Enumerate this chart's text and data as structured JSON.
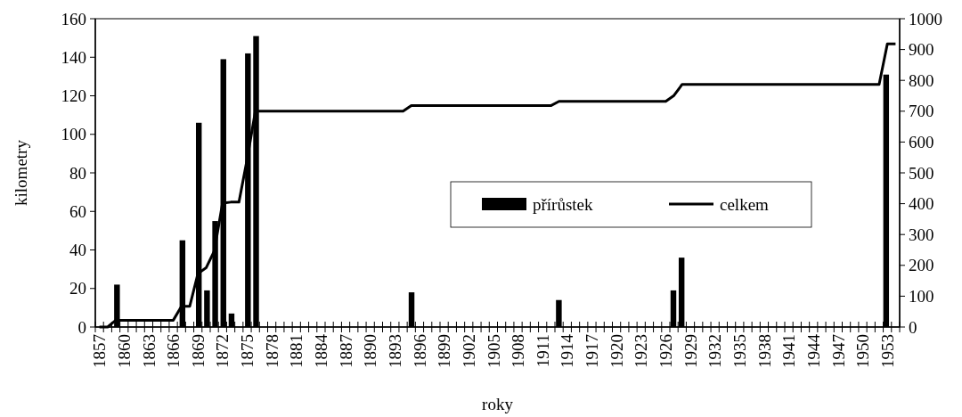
{
  "chart_data": {
    "type": "bar",
    "xlabel": "roky",
    "ylabel": "kilometry",
    "categories": [
      "1857",
      null,
      null,
      "1860",
      null,
      null,
      "1863",
      null,
      null,
      "1866",
      null,
      null,
      "1869",
      null,
      null,
      "1872",
      null,
      null,
      "1875",
      null,
      null,
      "1878",
      null,
      null,
      "1881",
      null,
      null,
      "1884",
      null,
      null,
      "1887",
      null,
      null,
      "1890",
      null,
      null,
      "1893",
      null,
      null,
      "1896",
      null,
      null,
      "1899",
      null,
      null,
      "1902",
      null,
      null,
      "1905",
      null,
      null,
      "1908",
      null,
      null,
      "1911",
      null,
      null,
      "1914",
      null,
      null,
      "1917",
      null,
      null,
      "1920",
      null,
      null,
      "1923",
      null,
      null,
      "1926",
      null,
      null,
      "1929",
      null,
      null,
      "1932",
      null,
      null,
      "1935",
      null,
      null,
      "1938",
      null,
      null,
      "1941",
      null,
      null,
      "1944",
      null,
      null,
      "1947",
      null,
      null,
      "1950",
      null,
      null,
      "1953",
      null
    ],
    "series": [
      {
        "name": "přírůstek",
        "color": "#000000",
        "values": [
          0,
          0,
          22,
          0,
          0,
          0,
          0,
          0,
          0,
          0,
          45,
          0,
          106,
          19,
          55,
          139,
          7,
          0,
          142,
          151,
          0,
          0,
          0,
          0,
          0,
          0,
          0,
          0,
          0,
          0,
          0,
          0,
          0,
          0,
          0,
          0,
          0,
          0,
          18,
          0,
          0,
          0,
          0,
          0,
          0,
          0,
          0,
          0,
          0,
          0,
          0,
          0,
          0,
          0,
          0,
          0,
          14,
          0,
          0,
          0,
          0,
          0,
          0,
          0,
          0,
          0,
          0,
          0,
          0,
          0,
          19,
          36,
          0,
          0,
          0,
          0,
          0,
          0,
          0,
          0,
          0,
          0,
          0,
          0,
          0,
          0,
          0,
          0,
          0,
          0,
          0,
          0,
          0,
          0,
          0,
          0,
          131,
          0
        ]
      },
      {
        "name": "celkem",
        "type": "line",
        "axis": "y2",
        "color": "#000000",
        "values": [
          0,
          0,
          22,
          22,
          22,
          22,
          22,
          22,
          22,
          22,
          67,
          67,
          173,
          192,
          247,
          402,
          405,
          405,
          545,
          700,
          700,
          700,
          700,
          700,
          700,
          700,
          700,
          700,
          700,
          700,
          700,
          700,
          700,
          700,
          700,
          700,
          700,
          700,
          718,
          718,
          718,
          718,
          718,
          718,
          718,
          718,
          718,
          718,
          718,
          718,
          718,
          718,
          718,
          718,
          718,
          718,
          732,
          732,
          732,
          732,
          732,
          732,
          732,
          732,
          732,
          732,
          732,
          732,
          732,
          732,
          751,
          787,
          787,
          787,
          787,
          787,
          787,
          787,
          787,
          787,
          787,
          787,
          787,
          787,
          787,
          787,
          787,
          787,
          787,
          787,
          787,
          787,
          787,
          787,
          787,
          787,
          918,
          918
        ]
      }
    ],
    "ylim": [
      0,
      160
    ],
    "yticks": [
      0,
      20,
      40,
      60,
      80,
      100,
      120,
      140,
      160
    ],
    "y2lim": [
      0,
      1000
    ],
    "y2ticks": [
      0,
      100,
      200,
      300,
      400,
      500,
      600,
      700,
      800,
      900,
      1000
    ],
    "legend": "right",
    "grid": false
  }
}
